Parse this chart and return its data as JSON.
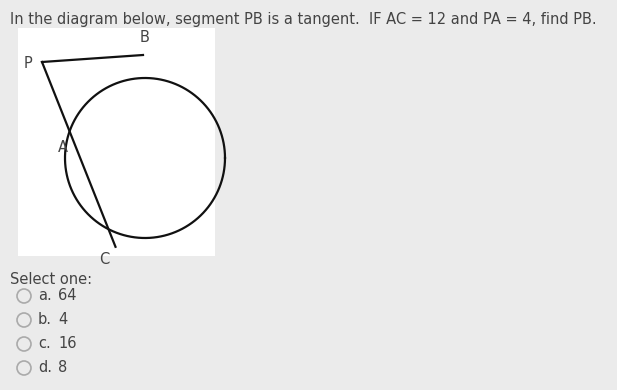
{
  "title": "In the diagram below, segment PB is a tangent.  IF AC = 12 and PA = 4, find PB.",
  "title_fontsize": 10.5,
  "background_color": "#ebebeb",
  "diagram_bg": "#ffffff",
  "text_color": "#444444",
  "line_color": "#111111",
  "circle_color": "#111111",
  "line_width": 1.6,
  "font_size_labels": 10.5,
  "font_size_options": 10.5,
  "radio_color": "#aaaaaa",
  "select_one_text": "Select one:",
  "options": [
    {
      "letter": "a.",
      "value": "64"
    },
    {
      "letter": "b.",
      "value": "4"
    },
    {
      "letter": "c.",
      "value": "16"
    },
    {
      "letter": "d.",
      "value": "8"
    }
  ]
}
